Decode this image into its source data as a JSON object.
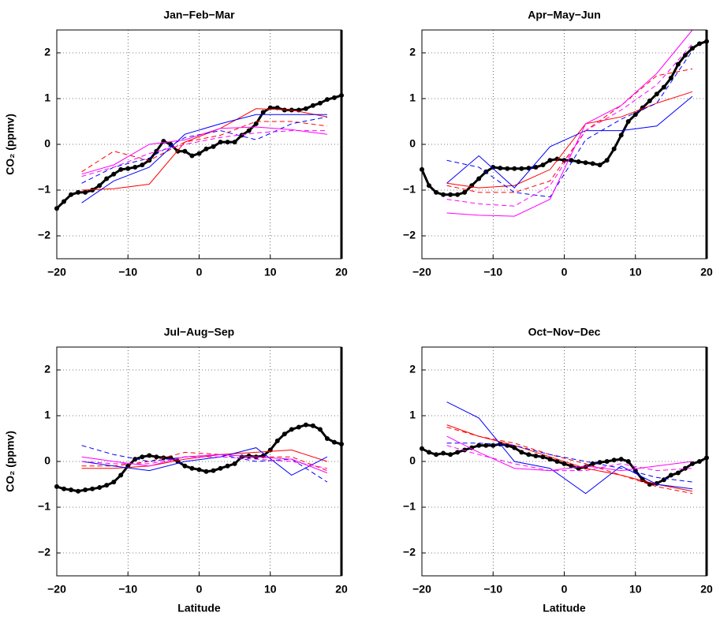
{
  "chart_data": [
    {
      "type": "line",
      "title": "Jan−Feb−Mar",
      "ylabel": "CO₂ (ppmv)",
      "xlim": [
        -20,
        20
      ],
      "ylim": [
        -2.5,
        2.5
      ],
      "xticks": [
        {
          "value": -20,
          "label": "−20"
        },
        {
          "value": -10,
          "label": "−10"
        },
        0,
        10,
        20
      ],
      "yticks": [
        {
          "value": -2,
          "label": "−2"
        },
        {
          "value": -1,
          "label": "−1"
        },
        0,
        1,
        2
      ],
      "grid": true,
      "series": [
        {
          "color": "#000000",
          "style": "solid",
          "width": 3,
          "markers": true,
          "x": [
            -20,
            -19,
            -18,
            -17,
            -16,
            -15,
            -14,
            -13,
            -12,
            -11,
            -10,
            -9,
            -8,
            -7,
            -6,
            -5,
            -4,
            -3,
            -2,
            -1,
            0,
            1,
            2,
            3,
            4,
            5,
            6,
            7,
            8,
            9,
            10,
            11,
            12,
            13,
            14,
            15,
            16,
            17,
            18,
            19,
            20
          ],
          "values": [
            -1.4,
            -1.25,
            -1.1,
            -1.05,
            -1.05,
            -1.0,
            -0.9,
            -0.75,
            -0.65,
            -0.55,
            -0.53,
            -0.5,
            -0.45,
            -0.35,
            -0.15,
            0.07,
            0.0,
            -0.15,
            -0.15,
            -0.25,
            -0.2,
            -0.1,
            -0.05,
            0.05,
            0.05,
            0.05,
            0.2,
            0.3,
            0.45,
            0.7,
            0.8,
            0.8,
            0.75,
            0.75,
            0.75,
            0.78,
            0.85,
            0.9,
            0.98,
            1.02,
            1.07
          ]
        },
        {
          "color": "#ff0000",
          "style": "solid",
          "width": 1,
          "x": [
            -16.5,
            -12,
            -7,
            -2,
            3,
            8,
            13,
            18
          ],
          "values": [
            -1.0,
            -0.97,
            -0.87,
            0.05,
            0.35,
            0.78,
            0.75,
            0.6
          ]
        },
        {
          "color": "#ff0000",
          "style": "dashed",
          "width": 1,
          "x": [
            -16.5,
            -12,
            -7,
            -2,
            3,
            8,
            13,
            18
          ],
          "values": [
            -0.6,
            -0.15,
            -0.35,
            0.05,
            0.2,
            0.5,
            0.5,
            0.4
          ]
        },
        {
          "color": "#0000ff",
          "style": "solid",
          "width": 1,
          "x": [
            -16.5,
            -12,
            -7,
            -2,
            3,
            8,
            13,
            18
          ],
          "values": [
            -1.28,
            -0.8,
            -0.5,
            0.22,
            0.45,
            0.65,
            0.65,
            0.65
          ]
        },
        {
          "color": "#0000ff",
          "style": "dashed",
          "width": 1,
          "x": [
            -16.5,
            -12,
            -7,
            -2,
            3,
            8,
            13,
            18
          ],
          "values": [
            -0.85,
            -0.5,
            -0.3,
            0.15,
            0.3,
            0.1,
            0.45,
            0.6
          ]
        },
        {
          "color": "#ff00ff",
          "style": "solid",
          "width": 1,
          "x": [
            -16.5,
            -12,
            -7,
            -2,
            3,
            8,
            13,
            18
          ],
          "values": [
            -0.65,
            -0.45,
            0.0,
            0.1,
            0.35,
            0.38,
            0.32,
            0.22
          ]
        },
        {
          "color": "#ff00ff",
          "style": "dashed",
          "width": 1,
          "x": [
            -16.5,
            -12,
            -7,
            -2,
            3,
            8,
            13,
            18
          ],
          "values": [
            -0.7,
            -0.5,
            -0.2,
            0.0,
            0.15,
            0.25,
            0.3,
            0.3
          ]
        }
      ]
    },
    {
      "type": "line",
      "title": "Apr−May−Jun",
      "xlim": [
        -20,
        20
      ],
      "ylim": [
        -2.5,
        2.5
      ],
      "xticks": [
        {
          "value": -20,
          "label": "−20"
        },
        {
          "value": -10,
          "label": "−10"
        },
        0,
        10,
        20
      ],
      "yticks": [
        {
          "value": -2,
          "label": "−2"
        },
        {
          "value": -1,
          "label": "−1"
        },
        0,
        1,
        2
      ],
      "grid": true,
      "series": [
        {
          "color": "#000000",
          "style": "solid",
          "width": 3,
          "markers": true,
          "x": [
            -20,
            -19,
            -18,
            -17,
            -16,
            -15,
            -14,
            -13,
            -12,
            -11,
            -10,
            -9,
            -8,
            -7,
            -6,
            -5,
            -4,
            -3,
            -2,
            -1,
            0,
            1,
            2,
            3,
            4,
            5,
            6,
            7,
            8,
            9,
            10,
            11,
            12,
            13,
            14,
            15,
            16,
            17,
            18,
            19,
            20
          ],
          "values": [
            -0.55,
            -0.9,
            -1.05,
            -1.1,
            -1.1,
            -1.1,
            -1.05,
            -0.9,
            -0.75,
            -0.6,
            -0.5,
            -0.52,
            -0.53,
            -0.53,
            -0.53,
            -0.52,
            -0.5,
            -0.45,
            -0.35,
            -0.32,
            -0.35,
            -0.35,
            -0.38,
            -0.4,
            -0.42,
            -0.45,
            -0.35,
            -0.1,
            0.2,
            0.5,
            0.65,
            0.8,
            0.95,
            1.1,
            1.25,
            1.45,
            1.75,
            1.95,
            2.1,
            2.2,
            2.25
          ]
        },
        {
          "color": "#ff0000",
          "style": "solid",
          "width": 1,
          "x": [
            -16.5,
            -12,
            -7,
            -2,
            3,
            8,
            13,
            18
          ],
          "values": [
            -0.85,
            -0.95,
            -0.9,
            -0.55,
            0.45,
            0.6,
            0.9,
            1.15
          ]
        },
        {
          "color": "#ff0000",
          "style": "dashed",
          "width": 1,
          "x": [
            -16.5,
            -12,
            -7,
            -2,
            3,
            8,
            13,
            18
          ],
          "values": [
            -0.9,
            -1.05,
            -1.05,
            -0.8,
            0.3,
            0.85,
            1.5,
            1.65
          ]
        },
        {
          "color": "#0000ff",
          "style": "solid",
          "width": 1,
          "x": [
            -16.5,
            -12,
            -7,
            -2,
            3,
            8,
            13,
            18
          ],
          "values": [
            -0.85,
            -0.25,
            -0.95,
            -0.05,
            0.3,
            0.3,
            0.4,
            1.05
          ]
        },
        {
          "color": "#0000ff",
          "style": "dashed",
          "width": 1,
          "x": [
            -16.5,
            -12,
            -7,
            -2,
            3,
            8,
            13,
            18
          ],
          "values": [
            -0.35,
            -0.5,
            -1.05,
            -1.15,
            0.1,
            0.55,
            0.9,
            2.05
          ]
        },
        {
          "color": "#ff00ff",
          "style": "solid",
          "width": 1,
          "x": [
            -16.5,
            -12,
            -7,
            -2,
            3,
            8,
            13,
            18
          ],
          "values": [
            -1.5,
            -1.55,
            -1.57,
            -1.2,
            0.45,
            0.85,
            1.55,
            2.5
          ]
        },
        {
          "color": "#ff00ff",
          "style": "dashed",
          "width": 1,
          "x": [
            -16.5,
            -12,
            -7,
            -2,
            3,
            8,
            13,
            18
          ],
          "values": [
            -1.2,
            -1.3,
            -1.35,
            -0.9,
            0.3,
            0.75,
            1.3,
            2.2
          ]
        }
      ]
    },
    {
      "type": "line",
      "title": "Jul−Aug−Sep",
      "ylabel": "CO₂ (ppmv)",
      "xlabel": "Latitude",
      "xlim": [
        -20,
        20
      ],
      "ylim": [
        -2.5,
        2.5
      ],
      "xticks": [
        {
          "value": -20,
          "label": "−20"
        },
        {
          "value": -10,
          "label": "−10"
        },
        0,
        10,
        20
      ],
      "yticks": [
        {
          "value": -2,
          "label": "−2"
        },
        {
          "value": -1,
          "label": "−1"
        },
        0,
        1,
        2
      ],
      "grid": true,
      "series": [
        {
          "color": "#000000",
          "style": "solid",
          "width": 3,
          "markers": true,
          "x": [
            -20,
            -19,
            -18,
            -17,
            -16,
            -15,
            -14,
            -13,
            -12,
            -11,
            -10,
            -9,
            -8,
            -7,
            -6,
            -5,
            -4,
            -3,
            -2,
            -1,
            0,
            1,
            2,
            3,
            4,
            5,
            6,
            7,
            8,
            9,
            10,
            11,
            12,
            13,
            14,
            15,
            16,
            17,
            18,
            19,
            20
          ],
          "values": [
            -0.55,
            -0.6,
            -0.62,
            -0.65,
            -0.62,
            -0.6,
            -0.57,
            -0.52,
            -0.45,
            -0.3,
            -0.1,
            0.05,
            0.1,
            0.13,
            0.1,
            0.08,
            0.08,
            0.0,
            -0.1,
            -0.15,
            -0.18,
            -0.22,
            -0.2,
            -0.15,
            -0.1,
            -0.05,
            0.1,
            0.12,
            0.1,
            0.12,
            0.25,
            0.45,
            0.6,
            0.7,
            0.75,
            0.8,
            0.78,
            0.7,
            0.5,
            0.42,
            0.38
          ]
        },
        {
          "color": "#ff0000",
          "style": "solid",
          "width": 1,
          "x": [
            -16.5,
            -12,
            -7,
            -2,
            3,
            8,
            13,
            18
          ],
          "values": [
            -0.15,
            -0.15,
            -0.1,
            0.05,
            0.15,
            0.2,
            0.25,
            0.0
          ]
        },
        {
          "color": "#ff0000",
          "style": "dashed",
          "width": 1,
          "x": [
            -16.5,
            -12,
            -7,
            -2,
            3,
            8,
            13,
            18
          ],
          "values": [
            -0.1,
            -0.1,
            0.0,
            0.2,
            0.15,
            0.1,
            0.1,
            -0.2
          ]
        },
        {
          "color": "#0000ff",
          "style": "solid",
          "width": 1,
          "x": [
            -16.5,
            -12,
            -7,
            -2,
            3,
            8,
            13,
            18
          ],
          "values": [
            0.0,
            -0.1,
            -0.2,
            0.0,
            0.1,
            0.3,
            -0.3,
            0.1
          ]
        },
        {
          "color": "#0000ff",
          "style": "dashed",
          "width": 1,
          "x": [
            -16.5,
            -12,
            -7,
            -2,
            3,
            8,
            13,
            18
          ],
          "values": [
            0.35,
            0.15,
            0.0,
            0.1,
            0.15,
            0.0,
            0.05,
            -0.45
          ]
        },
        {
          "color": "#ff00ff",
          "style": "solid",
          "width": 1,
          "x": [
            -16.5,
            -12,
            -7,
            -2,
            3,
            8,
            13,
            18
          ],
          "values": [
            0.1,
            0.0,
            -0.1,
            0.1,
            0.15,
            0.1,
            0.05,
            -0.25
          ]
        },
        {
          "color": "#ff00ff",
          "style": "dashed",
          "width": 1,
          "x": [
            -16.5,
            -12,
            -7,
            -2,
            3,
            8,
            13,
            18
          ],
          "values": [
            0.0,
            -0.05,
            -0.05,
            0.1,
            0.1,
            0.05,
            0.0,
            -0.15
          ]
        }
      ]
    },
    {
      "type": "line",
      "title": "Oct−Nov−Dec",
      "xlabel": "Latitude",
      "xlim": [
        -20,
        20
      ],
      "ylim": [
        -2.5,
        2.5
      ],
      "xticks": [
        {
          "value": -20,
          "label": "−20"
        },
        {
          "value": -10,
          "label": "−10"
        },
        0,
        10,
        20
      ],
      "yticks": [
        {
          "value": -2,
          "label": "−2"
        },
        {
          "value": -1,
          "label": "−1"
        },
        0,
        1,
        2
      ],
      "grid": true,
      "series": [
        {
          "color": "#000000",
          "style": "solid",
          "width": 3,
          "markers": true,
          "x": [
            -20,
            -19,
            -18,
            -17,
            -16,
            -15,
            -14,
            -13,
            -12,
            -11,
            -10,
            -9,
            -8,
            -7,
            -6,
            -5,
            -4,
            -3,
            -2,
            -1,
            0,
            1,
            2,
            3,
            4,
            5,
            6,
            7,
            8,
            9,
            10,
            11,
            12,
            13,
            14,
            15,
            16,
            17,
            18,
            19,
            20
          ],
          "values": [
            0.28,
            0.2,
            0.15,
            0.18,
            0.15,
            0.2,
            0.25,
            0.3,
            0.35,
            0.35,
            0.35,
            0.38,
            0.35,
            0.3,
            0.2,
            0.15,
            0.12,
            0.1,
            0.05,
            0.0,
            -0.05,
            -0.1,
            -0.15,
            -0.12,
            -0.05,
            -0.02,
            0.0,
            0.03,
            0.05,
            0.0,
            -0.2,
            -0.4,
            -0.5,
            -0.48,
            -0.4,
            -0.3,
            -0.25,
            -0.15,
            -0.05,
            0.0,
            0.08
          ]
        },
        {
          "color": "#ff0000",
          "style": "solid",
          "width": 1,
          "x": [
            -16.5,
            -12,
            -7,
            -2,
            3,
            8,
            13,
            18
          ],
          "values": [
            0.8,
            0.55,
            0.35,
            0.1,
            -0.15,
            -0.3,
            -0.5,
            -0.65
          ]
        },
        {
          "color": "#ff0000",
          "style": "dashed",
          "width": 1,
          "x": [
            -16.5,
            -12,
            -7,
            -2,
            3,
            8,
            13,
            18
          ],
          "values": [
            0.75,
            0.55,
            0.4,
            0.15,
            -0.05,
            -0.3,
            -0.55,
            -0.7
          ]
        },
        {
          "color": "#0000ff",
          "style": "solid",
          "width": 1,
          "x": [
            -16.5,
            -12,
            -7,
            -2,
            3,
            8,
            13,
            18
          ],
          "values": [
            1.3,
            0.95,
            0.0,
            -0.15,
            -0.7,
            -0.1,
            -0.5,
            -0.6
          ]
        },
        {
          "color": "#0000ff",
          "style": "dashed",
          "width": 1,
          "x": [
            -16.5,
            -12,
            -7,
            -2,
            3,
            8,
            13,
            18
          ],
          "values": [
            0.4,
            0.4,
            0.35,
            0.15,
            0.0,
            -0.15,
            -0.35,
            -0.45
          ]
        },
        {
          "color": "#ff00ff",
          "style": "solid",
          "width": 1,
          "x": [
            -16.5,
            -12,
            -7,
            -2,
            3,
            8,
            13,
            18
          ],
          "values": [
            0.55,
            0.2,
            -0.15,
            -0.2,
            -0.1,
            -0.2,
            -0.1,
            0.0
          ]
        },
        {
          "color": "#ff00ff",
          "style": "dashed",
          "width": 1,
          "x": [
            -16.5,
            -12,
            -7,
            -2,
            3,
            8,
            13,
            18
          ],
          "values": [
            0.35,
            0.15,
            -0.05,
            -0.2,
            -0.2,
            -0.05,
            -0.2,
            -0.15
          ]
        }
      ]
    }
  ]
}
